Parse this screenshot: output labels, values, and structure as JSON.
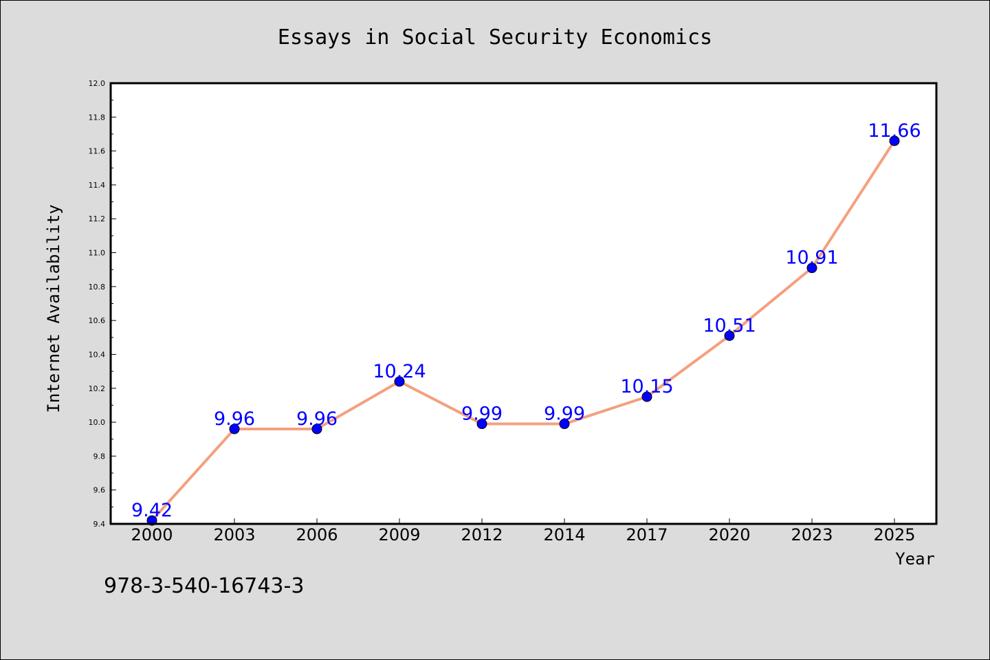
{
  "isbn": "978-3-540-16743-3",
  "chart_data": {
    "type": "line",
    "title": "Essays in Social Security Economics",
    "xlabel": "Year",
    "ylabel": "Internet Availability",
    "categories": [
      "2000",
      "2003",
      "2006",
      "2009",
      "2012",
      "2014",
      "2017",
      "2020",
      "2023",
      "2025"
    ],
    "values": [
      9.42,
      9.96,
      9.96,
      10.24,
      9.99,
      9.99,
      10.15,
      10.51,
      10.91,
      11.66
    ],
    "data_labels": [
      "9.42",
      "9.96",
      "9.96",
      "10.24",
      "9.99",
      "9.99",
      "10.15",
      "10.51",
      "10.91",
      "11.66"
    ],
    "ylim": [
      9.4,
      12.0
    ],
    "yticks": [
      "9.4",
      "9.6",
      "9.8",
      "10.0",
      "10.2",
      "10.4",
      "10.6",
      "10.8",
      "11.0",
      "11.2",
      "11.4",
      "11.6",
      "11.8",
      "12.0"
    ],
    "grid": false,
    "legend": "none",
    "colors": {
      "line": "#f4a07e",
      "marker": "#0000ff",
      "label": "#0000ff",
      "background": "#dcdcdc",
      "plot_background": "#ffffff"
    }
  }
}
